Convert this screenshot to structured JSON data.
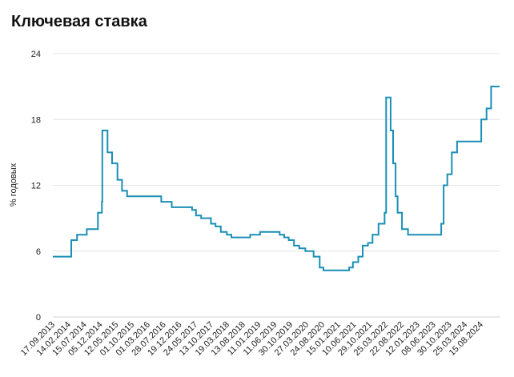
{
  "chart_data": {
    "type": "line",
    "title": "Ключевая ставка",
    "xlabel": "",
    "ylabel": "% годовых",
    "ylim": [
      0,
      24
    ],
    "yticks": [
      0,
      6,
      12,
      18,
      24
    ],
    "grid": "horizontal",
    "legend": "none",
    "x_tick_labels": [
      "17.09.2013",
      "14.02.2014",
      "15.07.2014",
      "05.12.2014",
      "12.05.2015",
      "01.10.2015",
      "01.03.2016",
      "28.07.2016",
      "19.12.2016",
      "24.05.2017",
      "13.10.2017",
      "19.03.2018",
      "13.08.2018",
      "11.01.2019",
      "11.06.2019",
      "30.10.2019",
      "27.03.2020",
      "24.08.2020",
      "15.01.2021",
      "10.06.2021",
      "29.10.2021",
      "25.03.2022",
      "22.08.2022",
      "12.01.2023",
      "08.06.2023",
      "30.10.2023",
      "25.03.2024",
      "15.08.2024"
    ],
    "series": [
      {
        "color": "#1a8fb5",
        "step": true,
        "points": [
          [
            "2013-09-13",
            5.5
          ],
          [
            "2014-03-03",
            7.0
          ],
          [
            "2014-04-25",
            7.5
          ],
          [
            "2014-07-25",
            8.0
          ],
          [
            "2014-11-05",
            9.5
          ],
          [
            "2014-12-12",
            10.5
          ],
          [
            "2014-12-16",
            17.0
          ],
          [
            "2015-02-02",
            15.0
          ],
          [
            "2015-03-16",
            14.0
          ],
          [
            "2015-05-05",
            12.5
          ],
          [
            "2015-06-16",
            11.5
          ],
          [
            "2015-08-03",
            11.0
          ],
          [
            "2016-06-14",
            10.5
          ],
          [
            "2016-09-19",
            10.0
          ],
          [
            "2017-03-27",
            9.75
          ],
          [
            "2017-05-02",
            9.25
          ],
          [
            "2017-06-19",
            9.0
          ],
          [
            "2017-09-18",
            8.5
          ],
          [
            "2017-10-30",
            8.25
          ],
          [
            "2017-12-18",
            7.75
          ],
          [
            "2018-02-12",
            7.5
          ],
          [
            "2018-03-26",
            7.25
          ],
          [
            "2018-09-17",
            7.5
          ],
          [
            "2018-12-17",
            7.75
          ],
          [
            "2019-06-17",
            7.5
          ],
          [
            "2019-07-29",
            7.25
          ],
          [
            "2019-09-09",
            7.0
          ],
          [
            "2019-10-28",
            6.5
          ],
          [
            "2019-12-16",
            6.25
          ],
          [
            "2020-02-10",
            6.0
          ],
          [
            "2020-04-27",
            5.5
          ],
          [
            "2020-06-22",
            4.5
          ],
          [
            "2020-07-27",
            4.25
          ],
          [
            "2021-03-22",
            4.5
          ],
          [
            "2021-04-26",
            5.0
          ],
          [
            "2021-06-15",
            5.5
          ],
          [
            "2021-07-26",
            6.5
          ],
          [
            "2021-09-13",
            6.75
          ],
          [
            "2021-10-25",
            7.5
          ],
          [
            "2021-12-20",
            8.5
          ],
          [
            "2022-02-14",
            9.5
          ],
          [
            "2022-02-28",
            20.0
          ],
          [
            "2022-04-11",
            17.0
          ],
          [
            "2022-05-04",
            14.0
          ],
          [
            "2022-05-27",
            11.0
          ],
          [
            "2022-06-14",
            9.5
          ],
          [
            "2022-07-25",
            8.0
          ],
          [
            "2022-09-19",
            7.5
          ],
          [
            "2023-07-24",
            8.5
          ],
          [
            "2023-08-15",
            12.0
          ],
          [
            "2023-09-18",
            13.0
          ],
          [
            "2023-10-30",
            15.0
          ],
          [
            "2023-12-18",
            16.0
          ],
          [
            "2024-07-29",
            18.0
          ],
          [
            "2024-09-16",
            19.0
          ],
          [
            "2024-10-28",
            21.0
          ],
          [
            "2025-01-15",
            21.0
          ]
        ]
      }
    ]
  }
}
